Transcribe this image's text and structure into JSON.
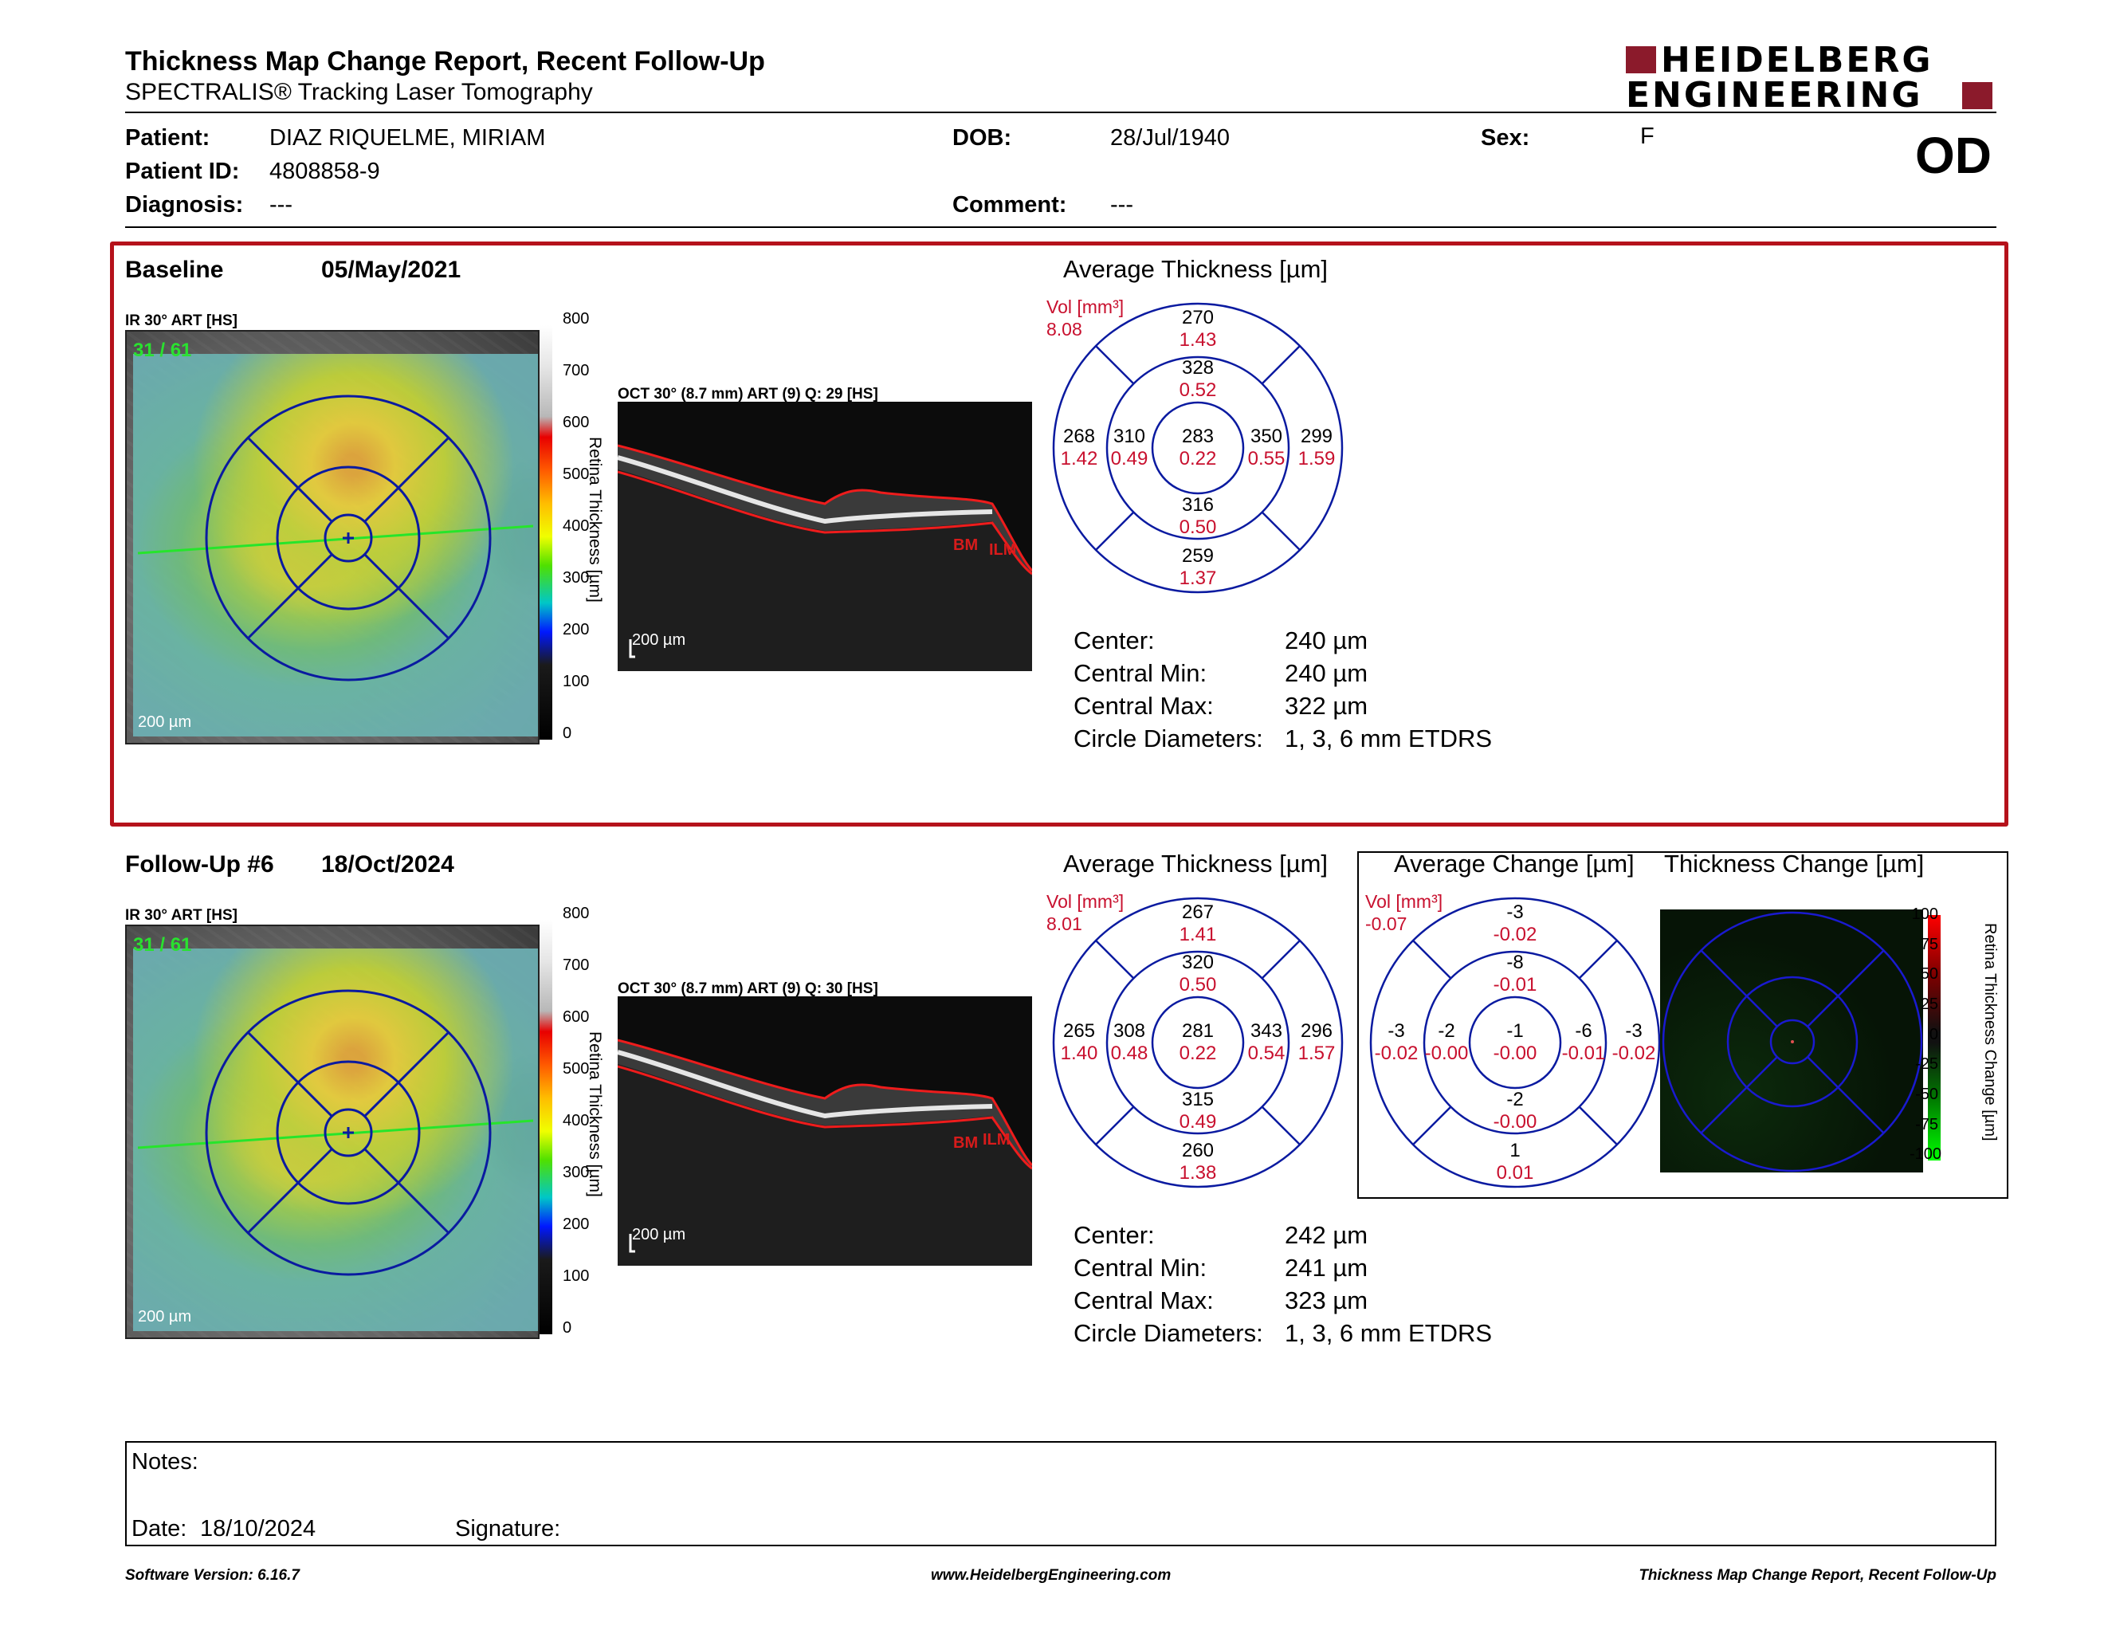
{
  "header": {
    "title": "Thickness Map Change Report, Recent Follow-Up",
    "subtitle": "SPECTRALIS® Tracking Laser Tomography",
    "eye": "OD",
    "logo_top": "HEIDELBERG",
    "logo_bottom": "ENGINEERING",
    "logo_color": "#8b1a2b"
  },
  "patient": {
    "name_label": "Patient:",
    "name": "DIAZ RIQUELME, MIRIAM",
    "id_label": "Patient ID:",
    "id": "4808858-9",
    "diagnosis_label": "Diagnosis:",
    "diagnosis": "---",
    "dob_label": "DOB:",
    "dob": "28/Jul/1940",
    "comment_label": "Comment:",
    "comment": "---",
    "sex_label": "Sex:",
    "sex": "F"
  },
  "baseline": {
    "label": "Baseline",
    "date": "05/May/2021",
    "ir_label": "IR 30° ART [HS]",
    "frame_count": "31 / 61",
    "ir_scale": "200 µm",
    "oct_label": "OCT 30° (8.7 mm) ART (9) Q: 29 [HS]",
    "oct_scale": "200 µm",
    "bm_label": "BM",
    "ilm_label": "ILM",
    "colorbar_ticks": [
      "800",
      "700",
      "600",
      "500",
      "400",
      "300",
      "200",
      "100",
      "0"
    ],
    "colorbar_title": "Retina Thickness [µm]",
    "avg_title": "Average Thickness [µm]",
    "vol_label": "Vol [mm³]",
    "vol_total": "8.08",
    "sectors": {
      "outer_top": [
        "270",
        "1.43"
      ],
      "inner_top": [
        "328",
        "0.52"
      ],
      "outer_left": [
        "268",
        "1.42"
      ],
      "inner_left": [
        "310",
        "0.49"
      ],
      "center": [
        "283",
        "0.22"
      ],
      "inner_right": [
        "350",
        "0.55"
      ],
      "outer_right": [
        "299",
        "1.59"
      ],
      "inner_bottom": [
        "316",
        "0.50"
      ],
      "outer_bottom": [
        "259",
        "1.37"
      ]
    },
    "stats": [
      {
        "label": "Center:",
        "value": "240 µm"
      },
      {
        "label": "Central Min:",
        "value": "240 µm"
      },
      {
        "label": "Central Max:",
        "value": "322 µm"
      },
      {
        "label": "Circle Diameters:",
        "value": "1, 3, 6 mm ETDRS"
      }
    ]
  },
  "followup": {
    "label": "Follow-Up #6",
    "date": "18/Oct/2024",
    "ir_label": "IR 30° ART [HS]",
    "frame_count": "31 / 61",
    "ir_scale": "200 µm",
    "oct_label": "OCT 30° (8.7 mm) ART (9) Q: 30 [HS]",
    "oct_scale": "200 µm",
    "bm_label": "BM",
    "ilm_label": "ILM",
    "colorbar_ticks": [
      "800",
      "700",
      "600",
      "500",
      "400",
      "300",
      "200",
      "100",
      "0"
    ],
    "colorbar_title": "Retina Thickness [µm]",
    "avg_title": "Average Thickness [µm]",
    "vol_label": "Vol [mm³]",
    "vol_total": "8.01",
    "sectors": {
      "outer_top": [
        "267",
        "1.41"
      ],
      "inner_top": [
        "320",
        "0.50"
      ],
      "outer_left": [
        "265",
        "1.40"
      ],
      "inner_left": [
        "308",
        "0.48"
      ],
      "center": [
        "281",
        "0.22"
      ],
      "inner_right": [
        "343",
        "0.54"
      ],
      "outer_right": [
        "296",
        "1.57"
      ],
      "inner_bottom": [
        "315",
        "0.49"
      ],
      "outer_bottom": [
        "260",
        "1.38"
      ]
    },
    "stats": [
      {
        "label": "Center:",
        "value": "242 µm"
      },
      {
        "label": "Central Min:",
        "value": "241 µm"
      },
      {
        "label": "Central Max:",
        "value": "323 µm"
      },
      {
        "label": "Circle Diameters:",
        "value": "1, 3, 6 mm ETDRS"
      }
    ]
  },
  "change": {
    "avg_title": "Average Change [µm]",
    "map_title": "Thickness Change [µm]",
    "vol_label": "Vol [mm³]",
    "vol_total": "-0.07",
    "sectors": {
      "outer_top": [
        "-3",
        "-0.02"
      ],
      "inner_top": [
        "-8",
        "-0.01"
      ],
      "outer_left": [
        "-3",
        "-0.02"
      ],
      "inner_left": [
        "-2",
        "-0.00"
      ],
      "center": [
        "-1",
        "-0.00"
      ],
      "inner_right": [
        "-6",
        "-0.01"
      ],
      "outer_right": [
        "-3",
        "-0.02"
      ],
      "inner_bottom": [
        "-2",
        "-0.00"
      ],
      "outer_bottom": [
        "1",
        "0.01"
      ]
    },
    "colorbar_ticks": [
      "100",
      "75",
      "50",
      "25",
      "0",
      "-25",
      "-50",
      "-75",
      "-100"
    ],
    "colorbar_title": "Retina Thickness Change [µm]"
  },
  "notes": {
    "label": "Notes:",
    "date_label": "Date:",
    "date": "18/10/2024",
    "signature_label": "Signature:"
  },
  "footer": {
    "version": "Software Version: 6.16.7",
    "url": "www.HeidelbergEngineering.com",
    "report": "Thickness Map Change Report, Recent Follow-Up"
  }
}
